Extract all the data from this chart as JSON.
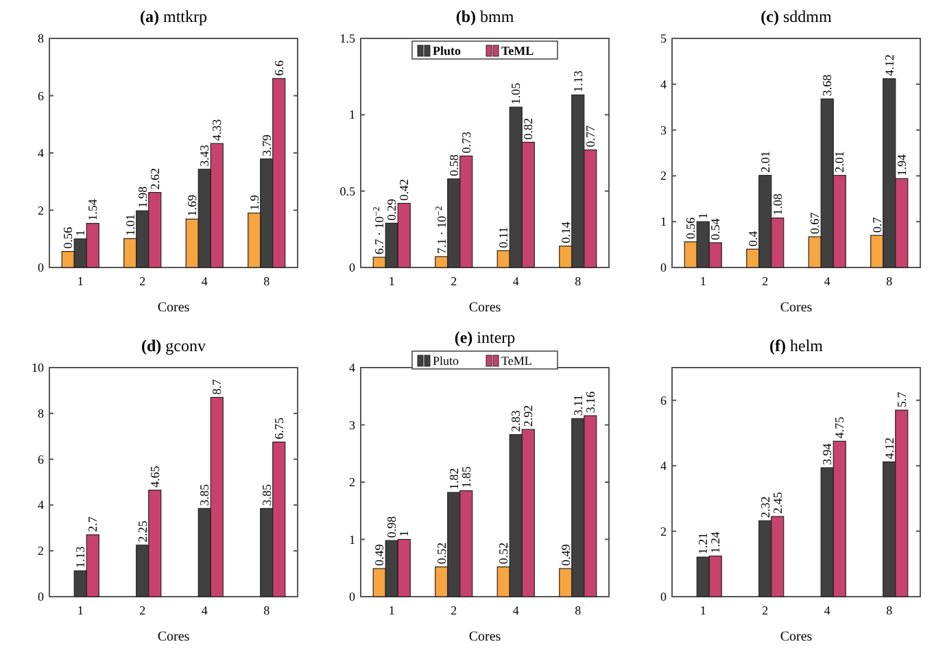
{
  "chart_data": [
    {
      "type": "bar",
      "title": "(a) mttkrp",
      "xlabel": "Cores",
      "categories": [
        "1",
        "2",
        "4",
        "8"
      ],
      "ylim": [
        0,
        8
      ],
      "yticks": [
        0,
        2,
        4,
        6,
        8
      ],
      "data_labels": true,
      "legend": false,
      "series": [
        {
          "color": "#f7a541",
          "values": [
            0.56,
            1.01,
            1.69,
            1.9
          ]
        },
        {
          "color": "#404040",
          "values": [
            1,
            1.98,
            3.43,
            3.79
          ]
        },
        {
          "color": "#c8426e",
          "values": [
            1.54,
            2.62,
            4.33,
            6.6
          ]
        }
      ]
    },
    {
      "type": "bar",
      "title": "(b) bmm",
      "xlabel": "Cores",
      "categories": [
        "1",
        "2",
        "4",
        "8"
      ],
      "ylim": [
        0,
        1.5
      ],
      "yticks": [
        0,
        0.5,
        1,
        1.5
      ],
      "data_labels": true,
      "legend": "top",
      "series": [
        {
          "color": "#f7a541",
          "values": [
            0.067,
            0.071,
            0.11,
            0.14
          ],
          "value_labels": [
            "6.7 · 10$^{−2}$",
            "7.1 · 10$^{−2}$",
            "0.11",
            "0.14"
          ]
        },
        {
          "name": "Pluto",
          "color": "#404040",
          "values": [
            0.29,
            0.58,
            1.05,
            1.13
          ]
        },
        {
          "name": "TeML",
          "color": "#c8426e",
          "values": [
            0.42,
            0.73,
            0.82,
            0.77
          ]
        }
      ]
    },
    {
      "type": "bar",
      "title": "(c) sddmm",
      "xlabel": "Cores",
      "categories": [
        "1",
        "2",
        "4",
        "8"
      ],
      "ylim": [
        0,
        5
      ],
      "yticks": [
        0,
        1,
        2,
        3,
        4,
        5
      ],
      "data_labels": true,
      "legend": false,
      "series": [
        {
          "color": "#f7a541",
          "values": [
            0.56,
            0.4,
            0.67,
            0.7
          ]
        },
        {
          "color": "#404040",
          "values": [
            1,
            2.01,
            3.68,
            4.12
          ]
        },
        {
          "color": "#c8426e",
          "values": [
            0.54,
            1.08,
            2.01,
            1.94
          ]
        }
      ]
    },
    {
      "type": "bar",
      "title": "(d) gconv",
      "xlabel": "Cores",
      "categories": [
        "1",
        "2",
        "4",
        "8"
      ],
      "ylim": [
        0,
        10
      ],
      "yticks": [
        0,
        2,
        4,
        6,
        8,
        10
      ],
      "data_labels": true,
      "legend": false,
      "series": [
        {
          "values": [
            null,
            null,
            null,
            null
          ]
        },
        {
          "color": "#404040",
          "values": [
            1.13,
            2.25,
            3.85,
            3.85
          ]
        },
        {
          "color": "#c8426e",
          "values": [
            2.7,
            4.65,
            8.7,
            6.75
          ]
        }
      ]
    },
    {
      "type": "bar",
      "title": "(e) interp",
      "xlabel": "Cores",
      "categories": [
        "1",
        "2",
        "4",
        "8"
      ],
      "ylim": [
        0,
        4
      ],
      "yticks": [
        0,
        1,
        2,
        3,
        4
      ],
      "data_labels": true,
      "legend": "top",
      "series": [
        {
          "color": "#f7a541",
          "values": [
            0.49,
            0.52,
            0.52,
            0.49
          ]
        },
        {
          "name": "Pluto",
          "color": "#404040",
          "values": [
            0.98,
            1.82,
            2.83,
            3.11
          ]
        },
        {
          "name": "TeML",
          "color": "#c8426e",
          "values": [
            1,
            1.85,
            2.92,
            3.16
          ]
        }
      ]
    },
    {
      "type": "bar",
      "title": "(f) helm",
      "xlabel": "Cores",
      "categories": [
        "1",
        "2",
        "4",
        "8"
      ],
      "ylim": [
        0,
        7
      ],
      "yticks": [
        0,
        2,
        4,
        6
      ],
      "data_labels": true,
      "legend": false,
      "series": [
        {
          "values": [
            null,
            null,
            null,
            null
          ]
        },
        {
          "color": "#404040",
          "values": [
            1.21,
            2.32,
            3.94,
            4.12
          ]
        },
        {
          "color": "#c8426e",
          "values": [
            1.24,
            2.45,
            4.75,
            5.7
          ]
        }
      ]
    }
  ]
}
